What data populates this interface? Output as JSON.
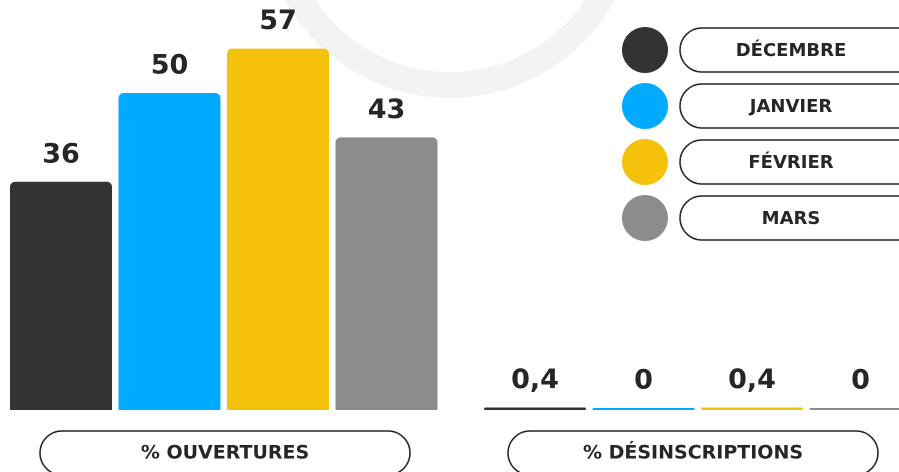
{
  "chart_data": {
    "type": "bar",
    "categories": [
      "% OUVERTURES",
      "% DÉSINSCRIPTIONS"
    ],
    "series": [
      {
        "name": "DÉCEMBRE",
        "color": "#333333",
        "values": [
          36,
          0.4
        ],
        "value_labels": [
          "36",
          "0,4"
        ]
      },
      {
        "name": "JANVIER",
        "color": "#00aaff",
        "values": [
          50,
          0
        ],
        "value_labels": [
          "50",
          "0"
        ]
      },
      {
        "name": "FÉVRIER",
        "color": "#f5c20b",
        "values": [
          57,
          0.4
        ],
        "value_labels": [
          "57",
          "0,4"
        ]
      },
      {
        "name": "MARS",
        "color": "#8c8c8c",
        "values": [
          43,
          0
        ],
        "value_labels": [
          "43",
          "0"
        ]
      }
    ],
    "legend": "top-right"
  }
}
